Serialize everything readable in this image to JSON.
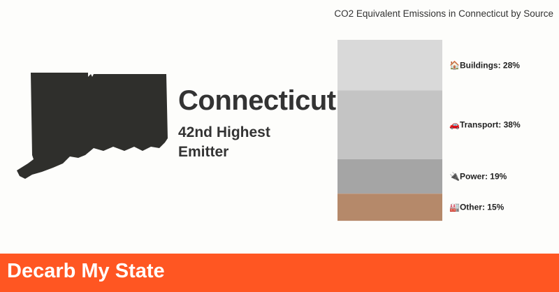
{
  "header": {
    "chart_title": "CO2 Equivalent Emissions in Connecticut by Source"
  },
  "state": {
    "name": "Connecticut",
    "rank_line1": "42nd Highest",
    "rank_line2": "Emitter",
    "shape_color": "#2f2f2c"
  },
  "footer": {
    "brand": "Decarb My State",
    "color": "#ff5622"
  },
  "chart_data": {
    "type": "bar",
    "stacked": true,
    "title": "CO2 Equivalent Emissions in Connecticut by Source",
    "unit": "%",
    "series": [
      {
        "name": "Buildings",
        "value": 28,
        "label": "🏠Buildings: 28%",
        "color": "#d9d9d9"
      },
      {
        "name": "Transport",
        "value": 38,
        "label": "🚗Transport: 38%",
        "color": "#c4c4c4"
      },
      {
        "name": "Power",
        "value": 19,
        "label": "🔌Power: 19%",
        "color": "#a5a5a5"
      },
      {
        "name": "Other",
        "value": 15,
        "label": "🏭Other: 15%",
        "color": "#b5896a"
      }
    ]
  }
}
